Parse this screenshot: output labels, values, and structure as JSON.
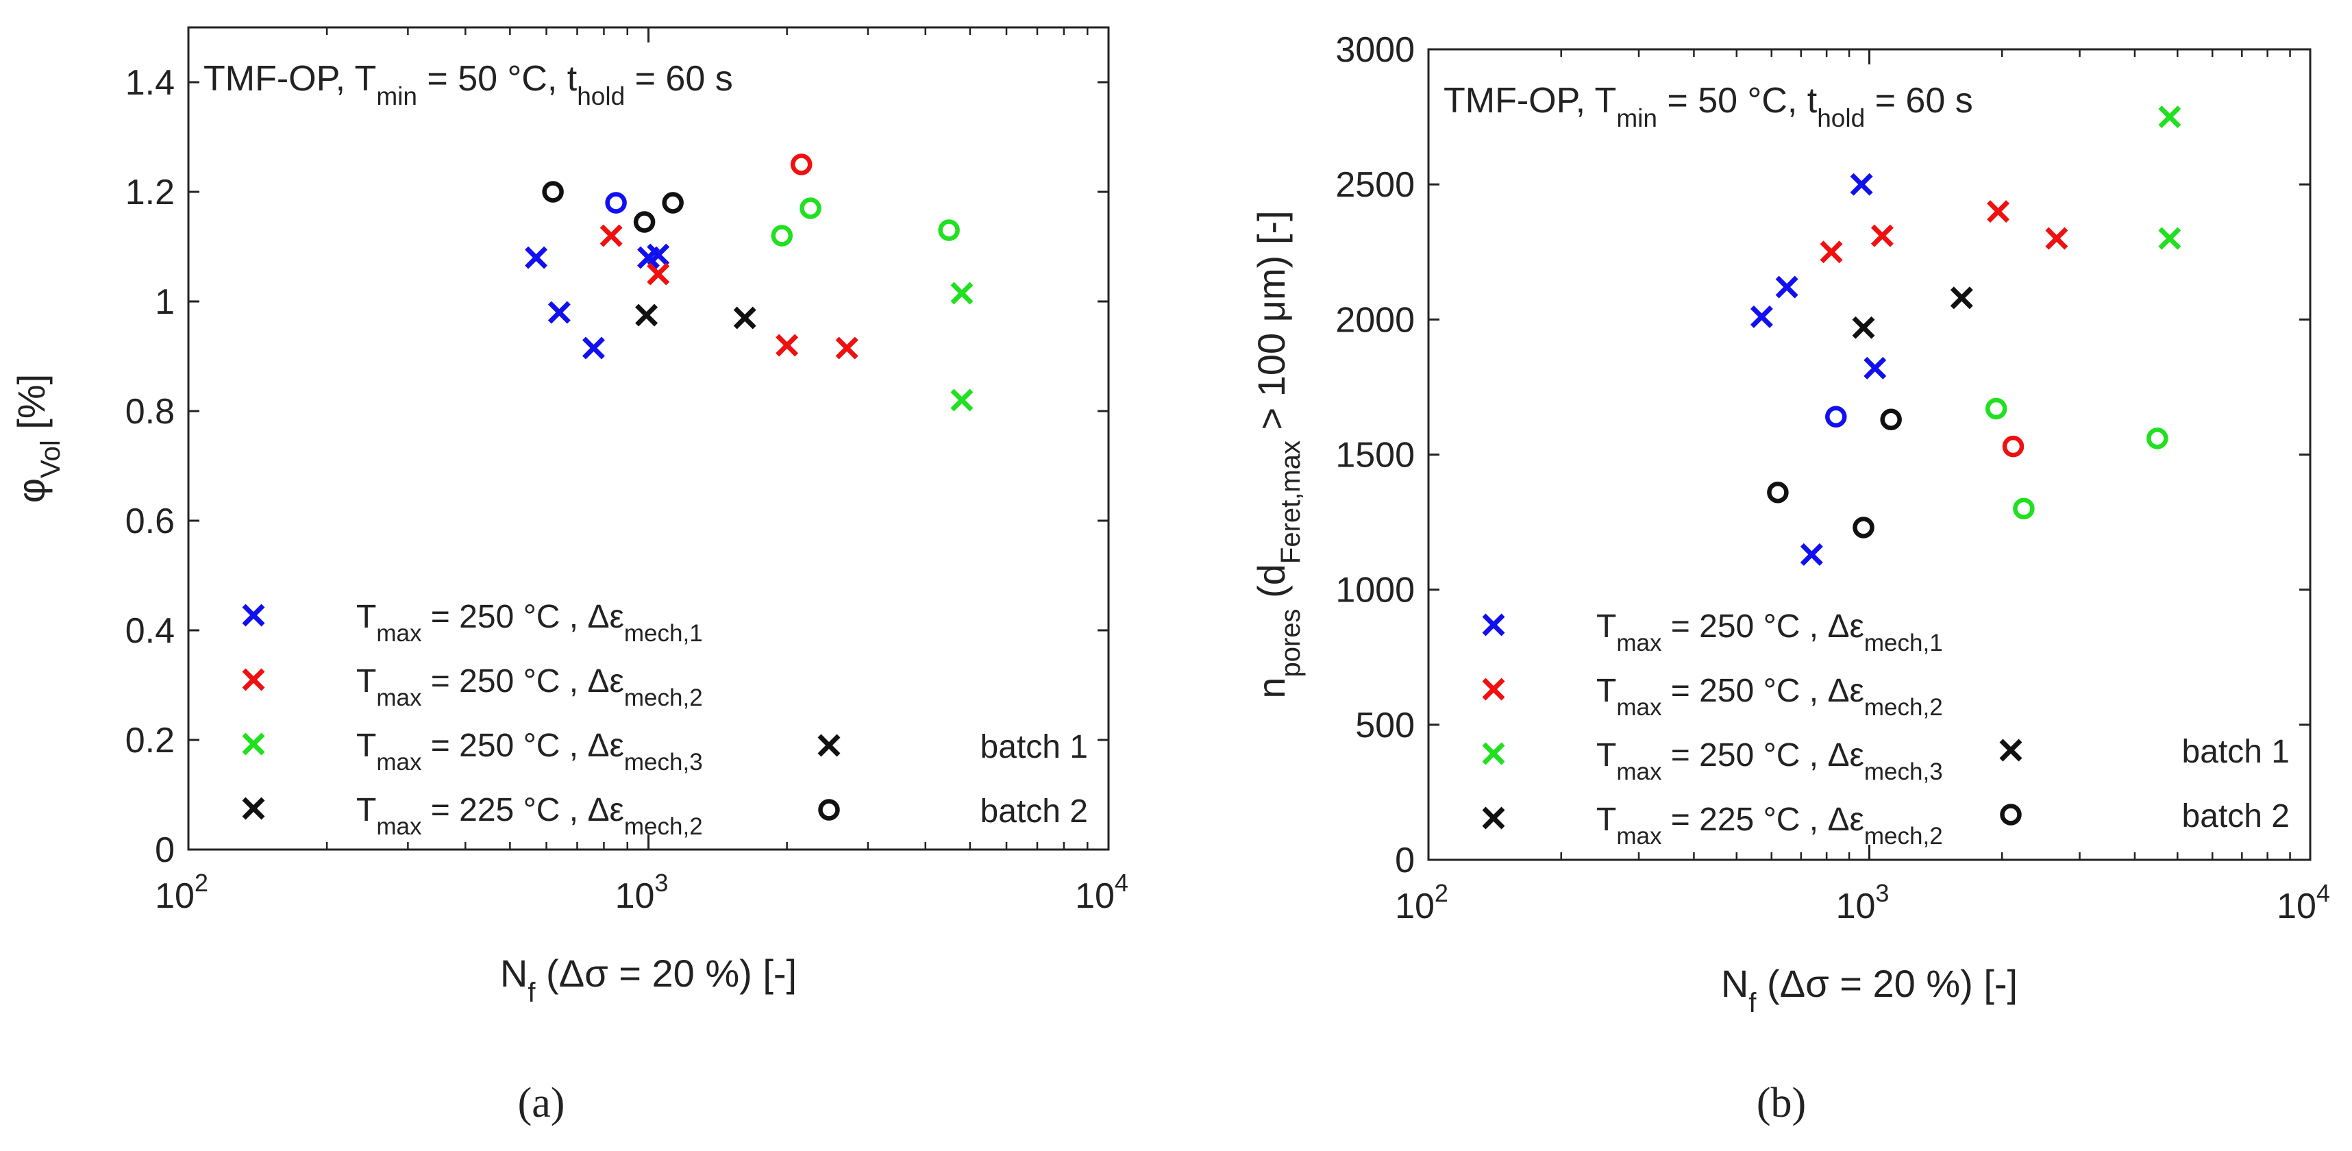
{
  "panels": [
    {
      "label": "(a)"
    },
    {
      "label": "(b)"
    }
  ],
  "colors": {
    "blue": "#1010f0",
    "red": "#f01010",
    "green": "#20e020",
    "black": "#111111"
  },
  "chart_data": [
    {
      "type": "scatter",
      "panel": "a",
      "title": "TMF-OP, T_min = 50 °C, t_hold = 60 s",
      "xlabel": "N_f (Δσ = 20 %) [-]",
      "ylabel": "φ_Vol [%]",
      "xscale": "log",
      "xlim": [
        100,
        10000
      ],
      "ylim": [
        0,
        1.5
      ],
      "xticks": [
        100,
        1000,
        10000
      ],
      "xtick_labels": [
        "10^2",
        "10^3",
        "10^4"
      ],
      "yticks": [
        0,
        0.2,
        0.4,
        0.6,
        0.8,
        1,
        1.2,
        1.4
      ],
      "ytick_labels": [
        "0",
        "0.2",
        "0.4",
        "0.6",
        "0.8",
        "1",
        "1.2",
        "1.4"
      ],
      "grid": false,
      "legend_position": "lower-left",
      "legend": [
        {
          "color": "blue",
          "text": "T_max = 250 °C , Δε_mech,1"
        },
        {
          "color": "red",
          "text": "T_max = 250 °C , Δε_mech,2"
        },
        {
          "color": "green",
          "text": "T_max = 250 °C , Δε_mech,3"
        },
        {
          "color": "black",
          "text": "T_max = 225 °C , Δε_mech,2"
        }
      ],
      "marker_legend": [
        {
          "marker": "x",
          "text": "batch 1"
        },
        {
          "marker": "o",
          "text": "batch 2"
        }
      ],
      "series": [
        {
          "color": "blue",
          "marker": "x",
          "x": [
            570,
            640,
            760,
            1000,
            1050
          ],
          "y": [
            1.08,
            0.98,
            0.915,
            1.08,
            1.085
          ]
        },
        {
          "color": "blue",
          "marker": "o",
          "x": [
            850
          ],
          "y": [
            1.18
          ]
        },
        {
          "color": "red",
          "marker": "x",
          "x": [
            830,
            1050,
            2000,
            2700
          ],
          "y": [
            1.12,
            1.05,
            0.92,
            0.915
          ]
        },
        {
          "color": "red",
          "marker": "o",
          "x": [
            2150
          ],
          "y": [
            1.25
          ]
        },
        {
          "color": "green",
          "marker": "x",
          "x": [
            4800,
            4800
          ],
          "y": [
            1.015,
            0.82
          ]
        },
        {
          "color": "green",
          "marker": "o",
          "x": [
            1950,
            2250,
            4500
          ],
          "y": [
            1.12,
            1.17,
            1.13
          ]
        },
        {
          "color": "black",
          "marker": "x",
          "x": [
            990,
            1620
          ],
          "y": [
            0.975,
            0.97
          ]
        },
        {
          "color": "black",
          "marker": "o",
          "x": [
            620,
            980,
            1130
          ],
          "y": [
            1.2,
            1.145,
            1.18
          ]
        }
      ]
    },
    {
      "type": "scatter",
      "panel": "b",
      "title": "TMF-OP, T_min = 50 °C, t_hold = 60 s",
      "xlabel": "N_f (Δσ = 20 %) [-]",
      "ylabel": "n_pores (d_Feret,max > 100 μm) [-]",
      "xscale": "log",
      "xlim": [
        100,
        10000
      ],
      "ylim": [
        0,
        3000
      ],
      "xticks": [
        100,
        1000,
        10000
      ],
      "xtick_labels": [
        "10^2",
        "10^3",
        "10^4"
      ],
      "yticks": [
        0,
        500,
        1000,
        1500,
        2000,
        2500,
        3000
      ],
      "ytick_labels": [
        "0",
        "500",
        "1000",
        "1500",
        "2000",
        "2500",
        "3000"
      ],
      "grid": false,
      "legend_position": "lower-left",
      "legend": [
        {
          "color": "blue",
          "text": "T_max = 250 °C , Δε_mech,1"
        },
        {
          "color": "red",
          "text": "T_max = 250 °C , Δε_mech,2"
        },
        {
          "color": "green",
          "text": "T_max = 250 °C , Δε_mech,3"
        },
        {
          "color": "black",
          "text": "T_max = 225 °C , Δε_mech,2"
        }
      ],
      "marker_legend": [
        {
          "marker": "x",
          "text": "batch 1"
        },
        {
          "marker": "o",
          "text": "batch 2"
        }
      ],
      "series": [
        {
          "color": "blue",
          "marker": "x",
          "x": [
            570,
            650,
            740,
            960,
            1030
          ],
          "y": [
            2010,
            2120,
            1130,
            2500,
            1820
          ]
        },
        {
          "color": "blue",
          "marker": "o",
          "x": [
            840
          ],
          "y": [
            1640
          ]
        },
        {
          "color": "red",
          "marker": "x",
          "x": [
            820,
            1070,
            1960,
            2660
          ],
          "y": [
            2250,
            2310,
            2400,
            2300
          ]
        },
        {
          "color": "red",
          "marker": "o",
          "x": [
            2120
          ],
          "y": [
            1530
          ]
        },
        {
          "color": "green",
          "marker": "x",
          "x": [
            4800,
            4800
          ],
          "y": [
            2750,
            2300
          ]
        },
        {
          "color": "green",
          "marker": "o",
          "x": [
            1940,
            2240,
            4500
          ],
          "y": [
            1670,
            1300,
            1560
          ]
        },
        {
          "color": "black",
          "marker": "x",
          "x": [
            970,
            1620
          ],
          "y": [
            1970,
            2080
          ]
        },
        {
          "color": "black",
          "marker": "o",
          "x": [
            620,
            970,
            1120
          ],
          "y": [
            1360,
            1230,
            1630
          ]
        }
      ]
    }
  ]
}
